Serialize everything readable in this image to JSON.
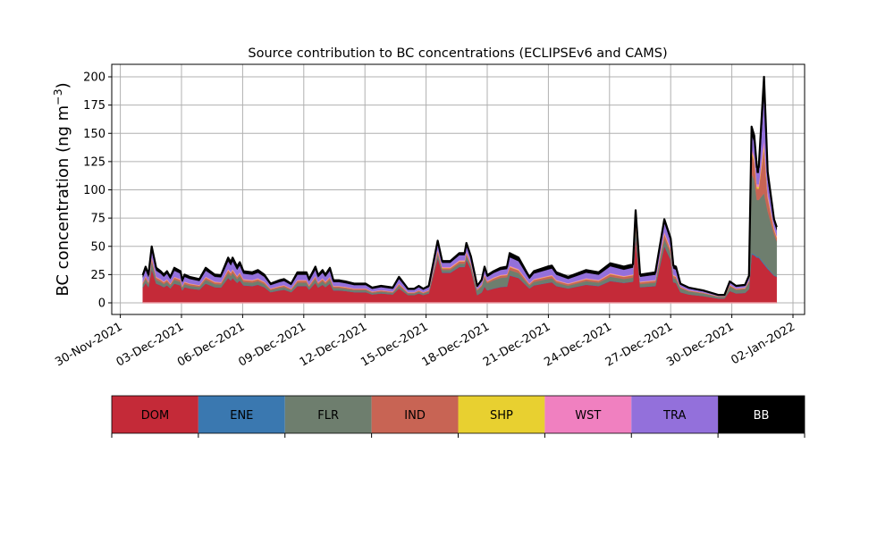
{
  "chart_data": {
    "type": "area",
    "stacked": true,
    "title": "Source contribution to BC concentrations (ECLIPSEv6 and CAMS)",
    "xlabel": "",
    "ylabel": "BC concentration (ng m",
    "ylabel_sup": "−3",
    "ylabel_end": ")",
    "x_unit": "days since 2021-11-30 00:00",
    "xlim": [
      -0.4,
      33.5
    ],
    "ylim": [
      -10,
      210
    ],
    "grid": true,
    "yticks": [
      0,
      25,
      50,
      75,
      100,
      125,
      150,
      175,
      200
    ],
    "xticks": [
      {
        "day": 0,
        "label": "30-Nov-2021"
      },
      {
        "day": 3,
        "label": "03-Dec-2021"
      },
      {
        "day": 6,
        "label": "06-Dec-2021"
      },
      {
        "day": 9,
        "label": "09-Dec-2021"
      },
      {
        "day": 12,
        "label": "12-Dec-2021"
      },
      {
        "day": 15,
        "label": "15-Dec-2021"
      },
      {
        "day": 18,
        "label": "18-Dec-2021"
      },
      {
        "day": 21,
        "label": "21-Dec-2021"
      },
      {
        "day": 24,
        "label": "24-Dec-2021"
      },
      {
        "day": 27,
        "label": "27-Dec-2021"
      },
      {
        "day": 30,
        "label": "30-Dec-2021"
      },
      {
        "day": 33,
        "label": "02-Jan-2022"
      }
    ],
    "x": [
      1.1,
      1.24,
      1.38,
      1.54,
      1.76,
      1.98,
      2.13,
      2.29,
      2.45,
      2.65,
      2.95,
      3.04,
      3.15,
      3.4,
      3.88,
      4.19,
      4.41,
      4.63,
      4.94,
      5.29,
      5.42,
      5.51,
      5.73,
      5.86,
      6.04,
      6.48,
      6.75,
      7.06,
      7.37,
      7.81,
      8.03,
      8.38,
      8.69,
      9.13,
      9.26,
      9.57,
      9.7,
      9.92,
      10.06,
      10.28,
      10.45,
      10.72,
      11.03,
      11.47,
      12.04,
      12.35,
      12.79,
      13.37,
      13.67,
      14.11,
      14.42,
      14.64,
      14.86,
      15.13,
      15.57,
      15.79,
      16.19,
      16.63,
      16.89,
      16.98,
      17.2,
      17.51,
      17.73,
      17.87,
      18.0,
      18.31,
      18.66,
      18.97,
      19.1,
      19.54,
      19.94,
      20.07,
      20.29,
      20.95,
      21.17,
      21.39,
      21.97,
      22.85,
      23.47,
      24.04,
      24.7,
      25.15,
      25.28,
      25.5,
      26.25,
      26.69,
      27.0,
      27.13,
      27.26,
      27.48,
      27.88,
      28.59,
      29.33,
      29.64,
      29.9,
      30.21,
      30.65,
      30.84,
      30.97,
      31.1,
      31.23,
      31.32,
      31.58,
      31.76,
      32.07,
      32.2
    ],
    "series": [
      {
        "name": "DOM",
        "color": "#c42a38",
        "values": [
          13.5,
          17.6,
          13.8,
          30,
          17,
          15.4,
          13.8,
          15.4,
          12.7,
          17,
          15.4,
          11,
          13.8,
          12.7,
          11.6,
          17,
          15.4,
          13.8,
          13.5,
          22,
          19.8,
          22,
          17.6,
          19.8,
          15.4,
          14.9,
          16,
          13.8,
          9.4,
          11,
          11.6,
          9.4,
          14.9,
          14.9,
          11.6,
          17.6,
          13.5,
          16,
          13.8,
          17,
          11,
          11,
          10.5,
          9.4,
          9.4,
          7.4,
          8.3,
          7.4,
          12.7,
          6.9,
          6.9,
          8.3,
          6.9,
          8.3,
          39.6,
          26.6,
          26.6,
          31.7,
          31.7,
          38.2,
          29.5,
          6.8,
          9.2,
          14.4,
          11,
          12.6,
          14,
          14.4,
          24.2,
          22,
          14.9,
          12.7,
          15.4,
          17.6,
          18.2,
          14.9,
          12.7,
          16,
          14.9,
          19.3,
          17.6,
          18.7,
          59,
          13.8,
          14.9,
          50,
          38,
          18.2,
          17.6,
          9.4,
          7.4,
          6,
          3.9,
          3.9,
          10.5,
          8.3,
          8.8,
          12,
          43,
          42,
          40,
          40,
          34,
          30,
          24,
          23
        ]
      },
      {
        "name": "ENE",
        "color": "#3a78b0",
        "values": [
          0.2,
          0.3,
          0.3,
          0.5,
          0.3,
          0.3,
          0.3,
          0.3,
          0.2,
          0.3,
          0.3,
          0.2,
          0.3,
          0.2,
          0.2,
          0.3,
          0.3,
          0.3,
          0.2,
          0.4,
          0.4,
          0.4,
          0.3,
          0.4,
          0.3,
          0.3,
          0.3,
          0.3,
          0.2,
          0.2,
          0.2,
          0.2,
          0.3,
          0.3,
          0.2,
          0.3,
          0.2,
          0.3,
          0.3,
          0.3,
          0.2,
          0.2,
          0.2,
          0.2,
          0.2,
          0.1,
          0.2,
          0.1,
          0.2,
          0.1,
          0.1,
          0.2,
          0.1,
          0.2,
          0.6,
          0.4,
          0.4,
          0.4,
          0.4,
          0.5,
          0.4,
          0.2,
          0.2,
          0.3,
          0.2,
          0.3,
          0.3,
          0.3,
          0.4,
          0.4,
          0.3,
          0.2,
          0.3,
          0.3,
          0.3,
          0.3,
          0.2,
          0.3,
          0.3,
          0.4,
          0.3,
          0.3,
          0.8,
          0.3,
          0.3,
          0.7,
          0.6,
          0.3,
          0.3,
          0.2,
          0.1,
          0.1,
          0.1,
          0.1,
          0.2,
          0.2,
          0.2,
          0.2,
          1,
          1,
          1,
          1,
          1,
          1,
          0.6,
          0.5
        ]
      },
      {
        "name": "FLR",
        "color": "#6e7e6e",
        "values": [
          2.5,
          3.2,
          2.5,
          6,
          3.1,
          2.8,
          2.5,
          2.8,
          2.3,
          3.1,
          2.8,
          2,
          2.5,
          2.3,
          2.1,
          3.1,
          2.8,
          2.5,
          2.5,
          4,
          3.6,
          4,
          3.2,
          3.6,
          2.8,
          2.7,
          2.9,
          2.5,
          1.7,
          2,
          2.1,
          1.7,
          2.7,
          2.7,
          2.1,
          3.2,
          2.5,
          2.9,
          2.5,
          3.1,
          2,
          2,
          1.9,
          1.7,
          1.7,
          1.4,
          1.5,
          1.4,
          2.3,
          1.3,
          1.3,
          1.5,
          1.3,
          1.5,
          3.3,
          2.2,
          2.2,
          2.6,
          2.6,
          3.2,
          2.5,
          3.8,
          5.1,
          8,
          6.1,
          7,
          7.8,
          8,
          4.4,
          4,
          2.7,
          2.3,
          2.8,
          3.2,
          3.3,
          2.7,
          2.3,
          2.9,
          2.7,
          3.5,
          3.2,
          3.4,
          8,
          2.5,
          2.7,
          6,
          5,
          3.3,
          3.2,
          3.4,
          2.7,
          2.2,
          1.4,
          1.4,
          3.8,
          3,
          3.2,
          6,
          70,
          66,
          50,
          50,
          62,
          50,
          36,
          31
        ]
      },
      {
        "name": "IND",
        "color": "#c86454",
        "values": [
          1.5,
          1.9,
          1.5,
          3,
          1.9,
          1.7,
          1.5,
          1.7,
          1.4,
          1.9,
          1.7,
          1.2,
          1.5,
          1.4,
          1.3,
          1.9,
          1.7,
          1.5,
          1.5,
          2.4,
          2.2,
          2.4,
          1.9,
          2.2,
          1.7,
          1.6,
          1.7,
          1.5,
          1,
          1.2,
          1.3,
          1,
          1.6,
          1.6,
          1.3,
          1.9,
          1.5,
          1.7,
          1.5,
          1.9,
          1.2,
          1.2,
          1.1,
          1,
          1,
          0.8,
          0.9,
          0.8,
          1.4,
          0.8,
          0.8,
          0.9,
          0.8,
          0.9,
          2.2,
          1.5,
          1.5,
          1.8,
          1.8,
          2.1,
          1.6,
          0.9,
          1.2,
          1.9,
          1.5,
          1.7,
          1.9,
          1.9,
          2.6,
          2.4,
          1.6,
          1.4,
          1.7,
          1.9,
          2,
          1.6,
          1.4,
          1.7,
          1.6,
          2.1,
          1.9,
          2,
          4,
          1.5,
          1.6,
          4,
          3,
          2,
          1.9,
          0.9,
          0.7,
          0.6,
          0.4,
          0.4,
          1,
          0.8,
          0.8,
          1.2,
          18,
          16,
          10,
          10,
          40,
          12,
          4,
          3
        ]
      },
      {
        "name": "SHP",
        "color": "#e8d030",
        "values": [
          0.2,
          0.3,
          0.3,
          0.5,
          0.3,
          0.3,
          0.3,
          0.3,
          0.2,
          0.3,
          0.3,
          0.2,
          0.3,
          0.2,
          0.2,
          0.3,
          0.3,
          0.3,
          0.2,
          0.4,
          0.4,
          0.4,
          0.3,
          0.4,
          0.3,
          0.3,
          0.3,
          0.3,
          0.2,
          0.2,
          0.2,
          0.2,
          0.3,
          0.3,
          0.2,
          0.3,
          0.2,
          0.3,
          0.3,
          0.3,
          0.2,
          0.2,
          0.2,
          0.2,
          0.2,
          0.1,
          0.2,
          0.1,
          0.2,
          0.1,
          0.1,
          0.2,
          0.1,
          0.2,
          0.6,
          0.4,
          0.4,
          0.4,
          0.4,
          0.5,
          0.4,
          0.2,
          0.2,
          0.3,
          0.2,
          0.3,
          0.3,
          0.3,
          0.4,
          0.4,
          0.3,
          0.2,
          0.3,
          0.3,
          0.3,
          0.3,
          0.2,
          0.3,
          0.3,
          0.4,
          0.3,
          0.3,
          0.8,
          0.3,
          0.3,
          0.7,
          0.6,
          0.3,
          0.3,
          0.2,
          0.1,
          0.1,
          0.1,
          0.1,
          0.2,
          0.2,
          0.2,
          0.2,
          2,
          2,
          1.5,
          1.5,
          3,
          1.5,
          1,
          0.8
        ]
      },
      {
        "name": "WST",
        "color": "#f080c0",
        "values": [
          0.5,
          0.6,
          0.5,
          1,
          0.6,
          0.6,
          0.5,
          0.6,
          0.5,
          0.6,
          0.6,
          0.4,
          0.5,
          0.5,
          0.4,
          0.6,
          0.6,
          0.5,
          0.5,
          0.8,
          0.7,
          0.8,
          0.6,
          0.7,
          0.6,
          0.5,
          0.6,
          0.5,
          0.3,
          0.4,
          0.4,
          0.3,
          0.5,
          0.5,
          0.4,
          0.6,
          0.5,
          0.6,
          0.5,
          0.6,
          0.4,
          0.4,
          0.4,
          0.3,
          0.3,
          0.3,
          0.3,
          0.3,
          0.5,
          0.3,
          0.3,
          0.3,
          0.3,
          0.3,
          1.1,
          0.7,
          0.7,
          0.9,
          0.9,
          1.1,
          0.8,
          0.3,
          0.4,
          0.6,
          0.5,
          0.6,
          0.6,
          0.6,
          0.9,
          0.8,
          0.5,
          0.5,
          0.6,
          0.6,
          0.7,
          0.5,
          0.5,
          0.6,
          0.5,
          0.7,
          0.6,
          0.7,
          1.6,
          0.5,
          0.5,
          1.5,
          1.1,
          0.7,
          0.6,
          0.3,
          0.3,
          0.2,
          0.1,
          0.1,
          0.4,
          0.3,
          0.3,
          0.5,
          3,
          3,
          2.5,
          2.5,
          5,
          2.5,
          1.4,
          1.2
        ]
      },
      {
        "name": "TRA",
        "color": "#9370db",
        "values": [
          4.2,
          5.4,
          4.2,
          6,
          5.3,
          4.8,
          4.2,
          4.8,
          3.9,
          5.3,
          4.8,
          3.4,
          4.2,
          3.9,
          3.6,
          5.3,
          4.8,
          4.2,
          4.2,
          6.8,
          6.1,
          6.8,
          5.4,
          6.1,
          4.8,
          4.6,
          4.9,
          4.2,
          2.9,
          3.4,
          3.6,
          2.9,
          4.6,
          4.6,
          3.6,
          5.4,
          4.2,
          4.9,
          4.2,
          5.3,
          3.4,
          3.4,
          3.2,
          2.9,
          2.9,
          2.3,
          2.5,
          2.3,
          3.9,
          2.1,
          2.1,
          2.5,
          2.1,
          2.5,
          5.5,
          3.7,
          3.7,
          4.4,
          4.4,
          5.3,
          4.1,
          2.1,
          2.9,
          4.5,
          3.4,
          3.9,
          4.3,
          4.5,
          7.5,
          6.8,
          4.6,
          3.9,
          4.8,
          5.4,
          5.6,
          4.6,
          3.9,
          4.9,
          4.6,
          6,
          5.4,
          5.8,
          5,
          4.2,
          4.6,
          8,
          6.5,
          5.6,
          5.4,
          1.7,
          1.4,
          1.1,
          0.7,
          0.7,
          1.9,
          1.5,
          1.6,
          2.5,
          12,
          12,
          10,
          10,
          38,
          13,
          5,
          5
        ]
      },
      {
        "name": "BB",
        "color": "#000000",
        "values": [
          1.9,
          2.7,
          1.9,
          3,
          2.5,
          2.1,
          1.9,
          2.1,
          1.8,
          2.5,
          2.1,
          1.6,
          1.9,
          1.8,
          1.6,
          2.5,
          2.1,
          1.9,
          1.9,
          3.2,
          2.8,
          3.2,
          2.7,
          2.8,
          2.1,
          2.1,
          2.3,
          1.9,
          1.3,
          1.6,
          1.6,
          1.3,
          2.1,
          2.1,
          1.6,
          2.7,
          1.9,
          2.3,
          1.9,
          2.5,
          1.6,
          1.6,
          1.5,
          1.3,
          1.3,
          1.1,
          1.1,
          1.1,
          1.8,
          0.9,
          0.9,
          1.1,
          0.9,
          1.1,
          2.1,
          1.5,
          1.5,
          1.8,
          1.8,
          2.1,
          1.7,
          0.7,
          1.3,
          2,
          1.6,
          1.6,
          1.8,
          2,
          3.6,
          3.2,
          2.1,
          1.8,
          2.1,
          2.7,
          2.6,
          2.1,
          1.8,
          2.3,
          2.1,
          2.6,
          2.7,
          2.8,
          2.8,
          1.9,
          2.1,
          3.1,
          2.2,
          2.6,
          2.7,
          0.9,
          0.8,
          0.7,
          0.3,
          0.3,
          1,
          0.7,
          0.9,
          1.4,
          7,
          6,
          5,
          5,
          17,
          6,
          2,
          2.5
        ]
      }
    ],
    "legend": {
      "placement": "below (color bar)",
      "labels": [
        "DOM",
        "ENE",
        "FLR",
        "IND",
        "SHP",
        "WST",
        "TRA",
        "BB"
      ]
    }
  }
}
